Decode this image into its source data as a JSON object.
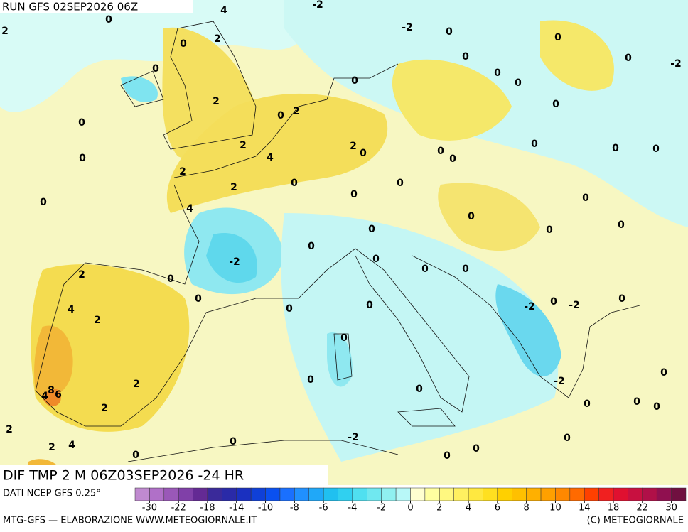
{
  "header": {
    "run": "RUN GFS 02SEP2026 06Z"
  },
  "map": {
    "title": "DIF TMP 2 M 06Z03SEP2026 -24 HR",
    "labels": [
      0,
      4,
      -2,
      2,
      2,
      0,
      -2,
      0,
      0,
      0,
      0,
      0,
      -2,
      0,
      0,
      0,
      2,
      0,
      0,
      2,
      0,
      2,
      2,
      0,
      0,
      0,
      0,
      0,
      4,
      0,
      0,
      2,
      0,
      0,
      2,
      0,
      0,
      0,
      4,
      0,
      0,
      0,
      0,
      0,
      -2,
      0,
      0,
      0,
      2,
      0,
      0,
      0,
      0,
      -2,
      0,
      -2,
      0,
      4,
      2,
      0,
      0,
      0,
      2,
      8,
      4,
      6,
      0,
      -2,
      0,
      0,
      0,
      2,
      2,
      -2,
      0,
      2,
      4,
      0,
      0,
      0,
      0
    ]
  },
  "colorbar": {
    "ticks": [
      -30,
      -22,
      -18,
      -14,
      -10,
      -8,
      -6,
      -4,
      -2,
      0,
      2,
      4,
      6,
      8,
      10,
      14,
      18,
      22,
      30
    ],
    "colors": [
      "#c08ad0",
      "#b070c8",
      "#9a58b8",
      "#8040a8",
      "#642a94",
      "#3a2a9a",
      "#2a2aa8",
      "#1a30c0",
      "#0f40d8",
      "#0a50f0",
      "#1a70ff",
      "#2090ff",
      "#20a8f8",
      "#20c0f0",
      "#30d0f0",
      "#50e0f0",
      "#70e8f0",
      "#90f0f0",
      "#b8f8f8",
      "#ffffd0",
      "#ffffa0",
      "#fff880",
      "#fff060",
      "#ffe840",
      "#ffe020",
      "#ffd000",
      "#ffc000",
      "#ffb000",
      "#ffa000",
      "#ff8800",
      "#ff6a00",
      "#ff4000",
      "#f02020",
      "#e01030",
      "#c81040",
      "#b01048",
      "#901050",
      "#701040"
    ]
  },
  "footer": {
    "source": "DATI NCEP GFS 0.25°",
    "credit": "MTG-GFS — ELABORAZIONE WWW.METEOGIORNALE.IT",
    "copyright": "(C) METEOGIORNALE"
  }
}
